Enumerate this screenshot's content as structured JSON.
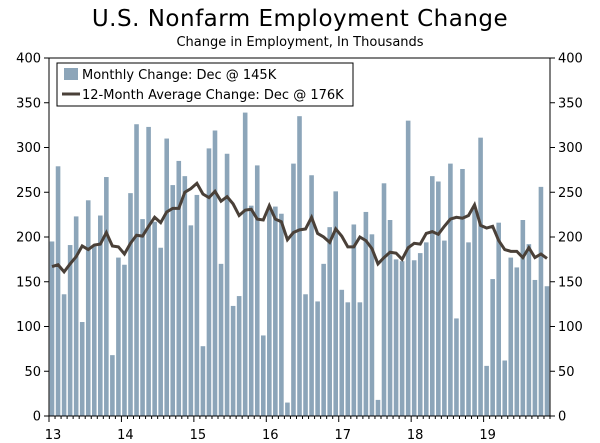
{
  "header": {
    "title": "U.S. Nonfarm Employment Change",
    "subtitle": "Change in Employment, In Thousands"
  },
  "colors": {
    "bar": "#8ca5b9",
    "bar_edge": "#6f8ba0",
    "line": "#4a4038",
    "axis": "#000000"
  },
  "chart_data": {
    "type": "bar",
    "title": "U.S. Nonfarm Employment Change",
    "subtitle": "Change in Employment, In Thousands",
    "ylim": [
      0,
      400
    ],
    "yticks": [
      0,
      50,
      100,
      150,
      200,
      250,
      300,
      350,
      400
    ],
    "xtick_labels": [
      "13",
      "14",
      "15",
      "16",
      "17",
      "18",
      "19"
    ],
    "x_start": "2013-01",
    "grid": false,
    "legend_position": "top-left",
    "series": [
      {
        "name": "Monthly Change: Dec @ 145K",
        "type": "bar",
        "values": [
          195,
          279,
          136,
          191,
          223,
          105,
          241,
          191,
          224,
          267,
          68,
          177,
          169,
          249,
          326,
          220,
          323,
          217,
          188,
          310,
          258,
          285,
          268,
          213,
          247,
          78,
          299,
          319,
          170,
          293,
          123,
          134,
          339,
          235,
          280,
          90,
          232,
          234,
          226,
          15,
          282,
          335,
          136,
          269,
          128,
          170,
          211,
          251,
          141,
          127,
          214,
          127,
          228,
          203,
          18,
          260,
          219,
          175,
          173,
          330,
          174,
          182,
          194,
          268,
          262,
          196,
          282,
          109,
          276,
          194,
          232,
          311,
          56,
          153,
          216,
          62,
          177,
          166,
          219,
          192,
          152,
          256,
          145
        ]
      },
      {
        "name": "12-Month Average Change: Dec @ 176K",
        "type": "line",
        "values": [
          167,
          169,
          161,
          170,
          178,
          190,
          186,
          191,
          192,
          205,
          190,
          189,
          181,
          193,
          202,
          201,
          212,
          222,
          216,
          228,
          232,
          232,
          250,
          254,
          260,
          248,
          244,
          251,
          240,
          245,
          237,
          224,
          230,
          231,
          220,
          219,
          235,
          220,
          217,
          197,
          205,
          208,
          209,
          222,
          204,
          200,
          194,
          209,
          201,
          189,
          189,
          200,
          196,
          187,
          170,
          177,
          183,
          182,
          175,
          188,
          193,
          192,
          204,
          206,
          203,
          212,
          220,
          222,
          221,
          224,
          236,
          213,
          210,
          212,
          196,
          186,
          184,
          184,
          177,
          188,
          177,
          181,
          176
        ]
      }
    ]
  }
}
